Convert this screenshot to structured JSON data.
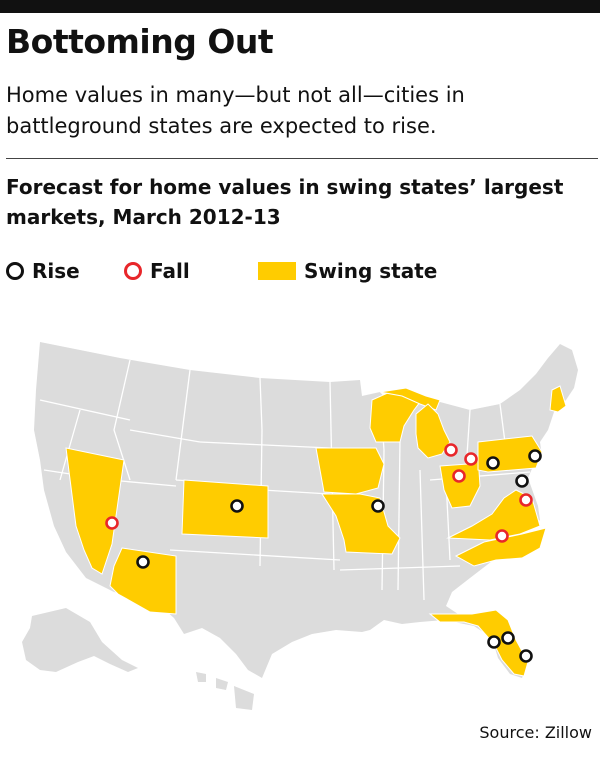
{
  "header": {
    "title": "Bottoming Out",
    "dek": "Home values in many—but not all—cities in battleground states are expected to rise."
  },
  "chart": {
    "subtitle": "Forecast for home values in swing states’ largest markets, March 2012-13"
  },
  "legend": {
    "rise_label": "Rise",
    "fall_label": "Fall",
    "swing_label": "Swing state"
  },
  "colors": {
    "swing_state": "#ffcc00",
    "other_state": "#dcdcdc",
    "border": "#ffffff",
    "rise": "#111111",
    "fall": "#e8262a"
  },
  "map": {
    "swing_states": [
      "Nevada",
      "Colorado",
      "Iowa",
      "Missouri",
      "Wisconsin",
      "Michigan",
      "Ohio",
      "Pennsylvania",
      "Virginia",
      "North Carolina",
      "Florida",
      "New Hampshire",
      "Arizona"
    ],
    "markets": [
      {
        "state": "Nevada",
        "forecast": "fall"
      },
      {
        "state": "Arizona",
        "forecast": "rise"
      },
      {
        "state": "Colorado",
        "forecast": "rise"
      },
      {
        "state": "Missouri",
        "forecast": "rise"
      },
      {
        "state": "Michigan",
        "forecast": "fall"
      },
      {
        "state": "Ohio",
        "forecast": "fall"
      },
      {
        "state": "Ohio",
        "forecast": "fall"
      },
      {
        "state": "Pennsylvania",
        "forecast": "rise"
      },
      {
        "state": "Pennsylvania",
        "forecast": "rise"
      },
      {
        "state": "Virginia",
        "forecast": "rise"
      },
      {
        "state": "Virginia",
        "forecast": "fall"
      },
      {
        "state": "North Carolina",
        "forecast": "fall"
      },
      {
        "state": "Florida",
        "forecast": "rise"
      },
      {
        "state": "Florida",
        "forecast": "rise"
      },
      {
        "state": "Florida",
        "forecast": "rise"
      }
    ]
  },
  "footer": {
    "source": "Source: Zillow"
  }
}
